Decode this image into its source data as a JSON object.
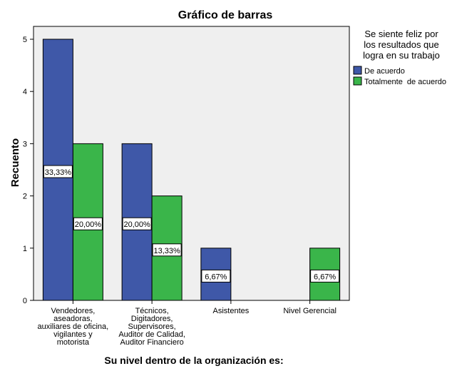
{
  "chart_data": {
    "type": "bar",
    "title": "Gráfico de barras",
    "xlabel": "Su nivel dentro de la organización es:",
    "ylabel": "Recuento",
    "ylim": [
      0,
      5
    ],
    "yticks": [
      "0",
      "1",
      "2",
      "3",
      "4",
      "5"
    ],
    "grid": false,
    "legend_position": "right",
    "legend_title": [
      "Se siente feliz por",
      "los resultados que",
      "logra en su trabajo"
    ],
    "categories": [
      [
        "Vendedores,",
        "aseadoras,",
        "auxiliares de oficina,",
        "vigilantes y",
        "motorista"
      ],
      [
        "Técnicos,",
        "Digitadores,",
        "Supervisores,",
        "Auditor de Calidad,",
        "Auditor Financiero"
      ],
      [
        "Asistentes"
      ],
      [
        "Nivel Gerencial"
      ]
    ],
    "series": [
      {
        "name": "De acuerdo",
        "color": "#3f58a8",
        "values": [
          5,
          3,
          1,
          0
        ],
        "labels": [
          "33,33%",
          "20,00%",
          "6,67%",
          ""
        ]
      },
      {
        "name": "Totalmente  de acuerdo",
        "color": "#3ab54a",
        "values": [
          3,
          2,
          0,
          1
        ],
        "labels": [
          "20,00%",
          "13,33%",
          "",
          "6,67%"
        ]
      }
    ],
    "plot_background": "#efefef"
  }
}
